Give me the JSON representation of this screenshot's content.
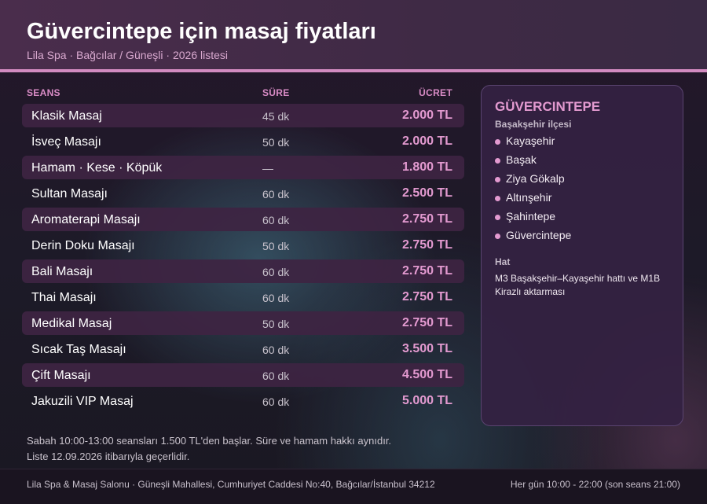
{
  "header": {
    "title": "Güvercintepe için masaj fiyatları",
    "subtitle": "Lila Spa · Bağcılar / Güneşli · 2026 listesi"
  },
  "table": {
    "headers": {
      "seans": "SEANS",
      "sure": "SÜRE",
      "ucret": "ÜCRET"
    },
    "rows": [
      {
        "name": "Klasik Masaj",
        "duration": "45 dk",
        "price": "2.000 TL"
      },
      {
        "name": "İsveç Masajı",
        "duration": "50 dk",
        "price": "2.000 TL"
      },
      {
        "name": "Hamam · Kese · Köpük",
        "duration": "—",
        "price": "1.800 TL"
      },
      {
        "name": "Sultan Masajı",
        "duration": "60 dk",
        "price": "2.500 TL"
      },
      {
        "name": "Aromaterapi Masajı",
        "duration": "60 dk",
        "price": "2.750 TL"
      },
      {
        "name": "Derin Doku Masajı",
        "duration": "50 dk",
        "price": "2.750 TL"
      },
      {
        "name": "Bali Masajı",
        "duration": "60 dk",
        "price": "2.750 TL"
      },
      {
        "name": "Thai Masajı",
        "duration": "60 dk",
        "price": "2.750 TL"
      },
      {
        "name": "Medikal Masaj",
        "duration": "50 dk",
        "price": "2.750 TL"
      },
      {
        "name": "Sıcak Taş Masajı",
        "duration": "60 dk",
        "price": "3.500 TL"
      },
      {
        "name": "Çift Masajı",
        "duration": "60 dk",
        "price": "4.500 TL"
      },
      {
        "name": "Jakuzili VIP Masaj",
        "duration": "60 dk",
        "price": "5.000 TL"
      }
    ]
  },
  "notes": {
    "line1": "Sabah 10:00-13:00 seansları 1.500 TL'den başlar. Süre ve hamam hakkı aynıdır.",
    "line2": "Liste 12.09.2026 itibarıyla geçerlidir."
  },
  "sidebar": {
    "title": "GÜVERCINTEPE",
    "subtitle": "Başakşehir ilçesi",
    "items": [
      "Kayaşehir",
      "Başak",
      "Ziya Gökalp",
      "Altınşehir",
      "Şahintepe",
      "Güvercintepe"
    ],
    "hat_label": "Hat",
    "hat_text": "M3 Başakşehir–Kayaşehir hattı ve M1B Kirazlı aktarması"
  },
  "footer": {
    "address": "Lila Spa & Masaj Salonu · Güneşli Mahallesi, Cumhuriyet Caddesi No:40, Bağcılar/İstanbul 34212",
    "hours": "Her gün 10:00 - 22:00 (son seans 21:00)"
  },
  "colors": {
    "accent": "#e39ad0",
    "header_bg": "#4a2d4c",
    "row_shade": "#3e2442"
  }
}
